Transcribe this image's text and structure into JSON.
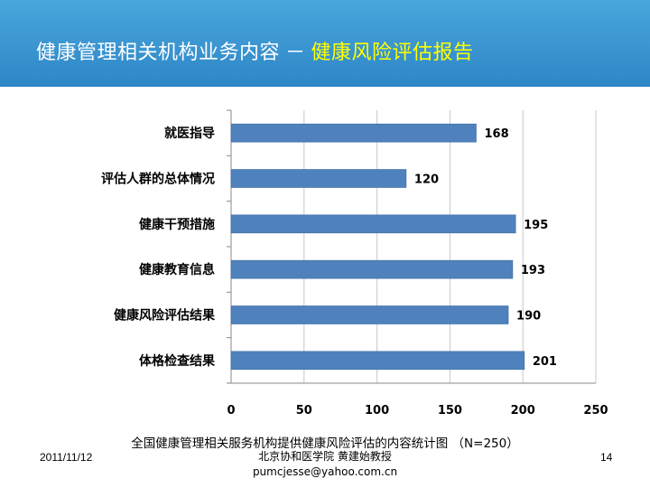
{
  "header": {
    "title_main": "健康管理相关机构业务内容",
    "title_sep": "－",
    "title_highlight": "健康风险评估报告"
  },
  "colors": {
    "header_bg": "#2e86c7",
    "highlight": "#ffff00",
    "bar_fill": "#4f81bd"
  },
  "chart_data": {
    "type": "bar",
    "orientation": "horizontal",
    "categories": [
      "就医指导",
      "评估人群的总体情况",
      "健康干预措施",
      "健康教育信息",
      "健康风险评估结果",
      "体格检查结果"
    ],
    "values": [
      168,
      120,
      195,
      193,
      190,
      201
    ],
    "xlim": [
      0,
      250
    ],
    "xticks": [
      0,
      50,
      100,
      150,
      200,
      250
    ],
    "grid": true,
    "data_labels": true
  },
  "caption": "全国健康管理相关服务机构提供健康风险评估的内容统计图 （N=250）",
  "footer": {
    "date": "2011/11/12",
    "author": "北京协和医学院 黄建始教授",
    "email": "pumcjesse@yahoo.com.cn",
    "page": "14"
  }
}
